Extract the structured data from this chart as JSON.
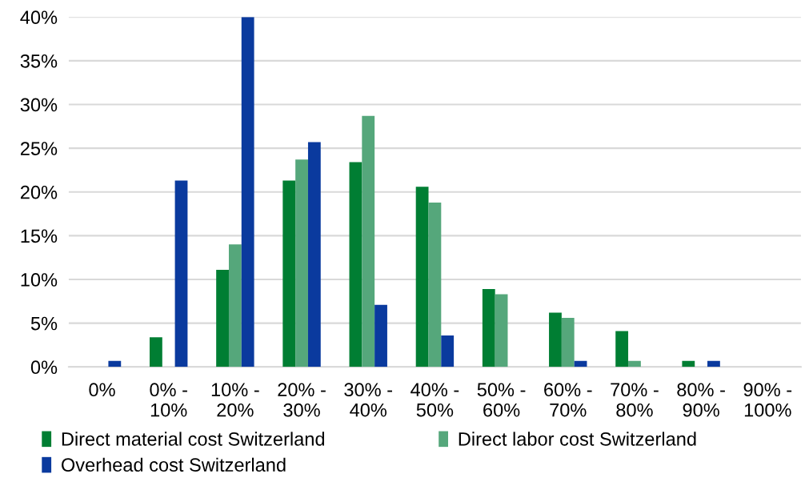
{
  "chart_data": {
    "type": "bar",
    "categories": [
      "0%",
      "0% -\n10%",
      "10% -\n20%",
      "20% -\n30%",
      "30% -\n40%",
      "40% -\n50%",
      "50% -\n60%",
      "60% -\n70%",
      "70% -\n80%",
      "80% -\n90%",
      "90% -\n100%"
    ],
    "series": [
      {
        "name": "Direct material cost Switzerland",
        "color": "#007e33",
        "values": [
          0,
          3.4,
          11.1,
          21.3,
          23.4,
          20.6,
          8.9,
          6.2,
          4.1,
          0.7,
          0
        ]
      },
      {
        "name": "Direct labor cost Switzerland",
        "color": "#55a77b",
        "values": [
          0,
          0,
          14.0,
          23.7,
          28.7,
          18.8,
          8.3,
          5.6,
          0.7,
          0,
          0
        ]
      },
      {
        "name": "Overhead cost Switzerland",
        "color": "#0a3a9e",
        "values": [
          0.7,
          21.3,
          40,
          25.7,
          7.1,
          3.6,
          0,
          0.7,
          0,
          0.7,
          0
        ]
      }
    ],
    "ylim": [
      0,
      40
    ],
    "yticks": [
      {
        "value": 0,
        "label": "0%"
      },
      {
        "value": 5,
        "label": "5%"
      },
      {
        "value": 10,
        "label": "10%"
      },
      {
        "value": 15,
        "label": "15%"
      },
      {
        "value": 20,
        "label": "20%"
      },
      {
        "value": 25,
        "label": "25%"
      },
      {
        "value": 30,
        "label": "30%"
      },
      {
        "value": 35,
        "label": "35%"
      },
      {
        "value": 40,
        "label": "40%"
      }
    ],
    "grid": "y",
    "legend": "bottom"
  }
}
